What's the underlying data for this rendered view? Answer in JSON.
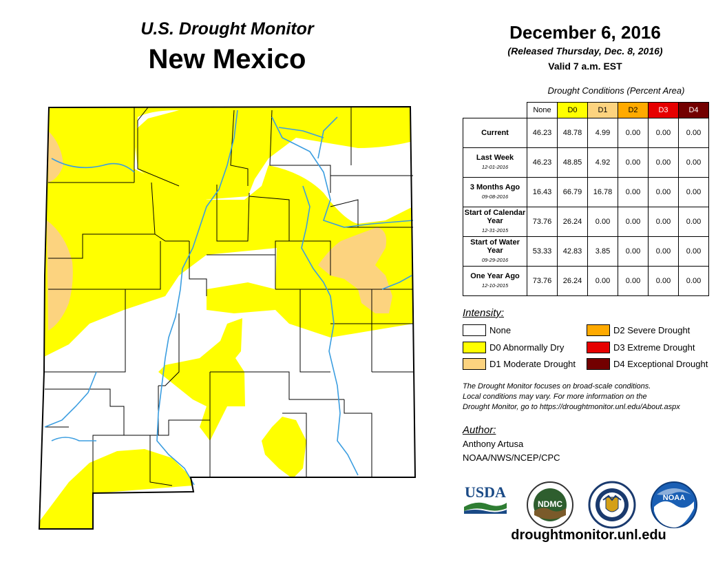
{
  "header": {
    "subtitle": "U.S. Drought Monitor",
    "state": "New Mexico"
  },
  "release": {
    "date": "December 6, 2016",
    "released": "(Released Thursday, Dec. 8, 2016)",
    "valid": "Valid 7 a.m. EST"
  },
  "table": {
    "title": "Drought Conditions (Percent Area)",
    "columns": [
      "None",
      "D0",
      "D1",
      "D2",
      "D3",
      "D4"
    ],
    "column_colors": [
      "#ffffff",
      "#ffff00",
      "#fcd37f",
      "#ffaa00",
      "#e60000",
      "#730000"
    ],
    "rows": [
      {
        "label": "Current",
        "date": "",
        "values": [
          "46.23",
          "48.78",
          "4.99",
          "0.00",
          "0.00",
          "0.00"
        ]
      },
      {
        "label": "Last Week",
        "date": "12-01-2016",
        "values": [
          "46.23",
          "48.85",
          "4.92",
          "0.00",
          "0.00",
          "0.00"
        ]
      },
      {
        "label": "3 Months Ago",
        "date": "09-08-2016",
        "values": [
          "16.43",
          "66.79",
          "16.78",
          "0.00",
          "0.00",
          "0.00"
        ]
      },
      {
        "label": "Start of Calendar Year",
        "date": "12-31-2015",
        "values": [
          "73.76",
          "26.24",
          "0.00",
          "0.00",
          "0.00",
          "0.00"
        ]
      },
      {
        "label": "Start of Water Year",
        "date": "09-29-2016",
        "values": [
          "53.33",
          "42.83",
          "3.85",
          "0.00",
          "0.00",
          "0.00"
        ]
      },
      {
        "label": "One Year Ago",
        "date": "12-10-2015",
        "values": [
          "73.76",
          "26.24",
          "0.00",
          "0.00",
          "0.00",
          "0.00"
        ]
      }
    ]
  },
  "legend": {
    "title": "Intensity:",
    "items": [
      {
        "label": "None",
        "color": "#ffffff"
      },
      {
        "label": "D0 Abnormally Dry",
        "color": "#ffff00"
      },
      {
        "label": "D1 Moderate Drought",
        "color": "#fcd37f"
      },
      {
        "label": "D2 Severe Drought",
        "color": "#ffaa00"
      },
      {
        "label": "D3 Extreme Drought",
        "color": "#e60000"
      },
      {
        "label": "D4 Exceptional Drought",
        "color": "#730000"
      }
    ]
  },
  "note": {
    "line1": "The Drought Monitor focuses on broad-scale conditions.",
    "line2": "Local conditions may vary. For more information on the",
    "line3": "Drought Monitor, go to https://droughtmonitor.unl.edu/About.aspx"
  },
  "author": {
    "title": "Author:",
    "name": "Anthony Artusa",
    "org": "NOAA/NWS/NCEP/CPC"
  },
  "logos": {
    "usda": "USDA",
    "ndmc": "NDMC",
    "noaa": "NOAA"
  },
  "footer": {
    "url": "droughtmonitor.unl.edu"
  },
  "map_colors": {
    "none": "#ffffff",
    "d0": "#ffff00",
    "d1": "#fcd37f",
    "river": "#3a9de0",
    "border": "#000000",
    "county": "#000000"
  }
}
